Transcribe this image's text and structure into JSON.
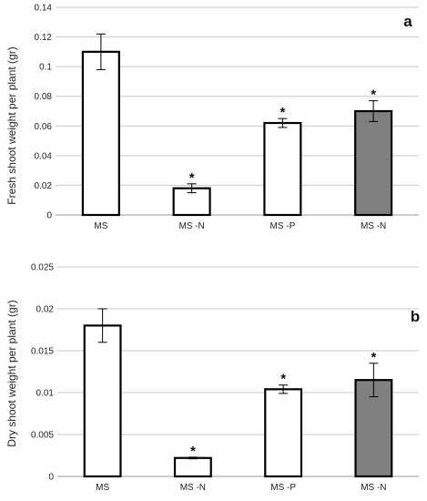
{
  "chart_data": [
    {
      "type": "bar",
      "panel_label": "a",
      "ylabel": "Fresh shoot weight per plant (gr)",
      "xlabel": "",
      "categories": [
        "MS",
        "MS -N",
        "MS -P",
        "MS -N"
      ],
      "values": [
        0.11,
        0.018,
        0.062,
        0.07
      ],
      "errors": [
        0.012,
        0.003,
        0.003,
        0.007
      ],
      "significance": [
        "",
        "*",
        "*",
        "*"
      ],
      "bar_colors": [
        "#ffffff",
        "#ffffff",
        "#ffffff",
        "#808080"
      ],
      "ylim": [
        0,
        0.14
      ],
      "yticks": [
        "0",
        "0.02",
        "0.04",
        "0.06",
        "0.08",
        "0.1",
        "0.12",
        "0.14"
      ],
      "grid": true
    },
    {
      "type": "bar",
      "panel_label": "b",
      "ylabel": "Dry shoot weight per plant (gr)",
      "xlabel": "",
      "categories": [
        "MS",
        "MS -N",
        "MS -P",
        "MS -N"
      ],
      "values": [
        0.018,
        0.0022,
        0.0104,
        0.0115
      ],
      "errors": [
        0.002,
        0.0001,
        0.0005,
        0.002
      ],
      "significance": [
        "",
        "*",
        "*",
        "*"
      ],
      "bar_colors": [
        "#ffffff",
        "#ffffff",
        "#ffffff",
        "#808080"
      ],
      "ylim": [
        0,
        0.025
      ],
      "yticks": [
        "0",
        "0.005",
        "0.01",
        "0.015",
        "0.02",
        "0.025"
      ],
      "grid": true
    }
  ]
}
